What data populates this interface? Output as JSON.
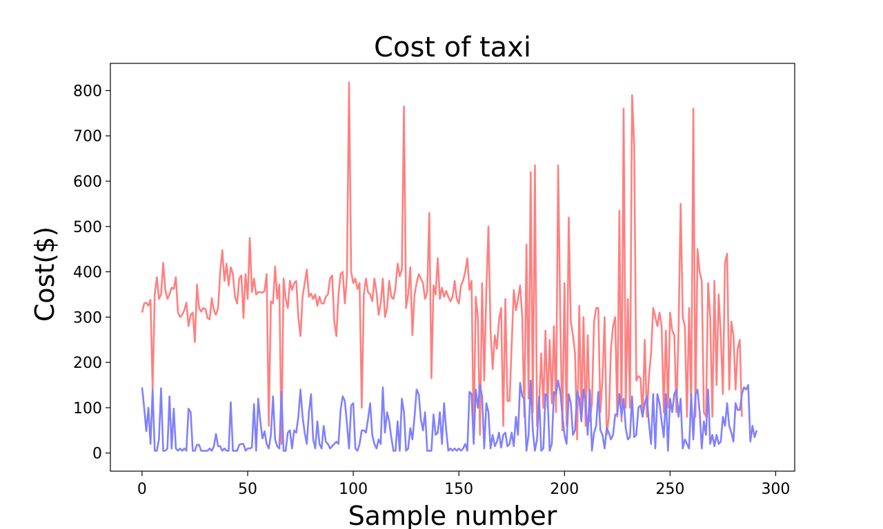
{
  "chart_data": {
    "type": "line",
    "title": "Cost of taxi",
    "xlabel": "Sample number",
    "ylabel": "Cost($)",
    "xlim": [
      -15,
      309
    ],
    "ylim": [
      -40,
      860
    ],
    "xticks": [
      0,
      50,
      100,
      150,
      200,
      250,
      300
    ],
    "yticks": [
      0,
      100,
      200,
      300,
      400,
      500,
      600,
      700,
      800
    ],
    "grid": false,
    "legend": "none",
    "series": [
      {
        "color": "#ff8080",
        "x_start": 0,
        "values": [
          310,
          330,
          332,
          325,
          338,
          140,
          350,
          388,
          340,
          350,
          420,
          360,
          340,
          350,
          365,
          362,
          388,
          310,
          300,
          305,
          315,
          332,
          280,
          305,
          310,
          245,
          372,
          320,
          312,
          320,
          318,
          298,
          295,
          342,
          315,
          305,
          320,
          400,
          448,
          380,
          418,
          370,
          410,
          395,
          345,
          330,
          385,
          392,
          298,
          395,
          340,
          475,
          355,
          385,
          350,
          355,
          355,
          354,
          358,
          395,
          60,
          335,
          330,
          412,
          340,
          372,
          20,
          385,
          340,
          320,
          380,
          360,
          375,
          380,
          300,
          258,
          345,
          375,
          405,
          345,
          352,
          340,
          350,
          325,
          345,
          330,
          330,
          345,
          350,
          385,
          392,
          290,
          258,
          350,
          395,
          400,
          330,
          390,
          818,
          400,
          375,
          385,
          362,
          375,
          100,
          350,
          385,
          355,
          350,
          335,
          385,
          355,
          305,
          330,
          385,
          300,
          320,
          380,
          345,
          340,
          365,
          418,
          390,
          405,
          765,
          320,
          350,
          410,
          260,
          350,
          375,
          395,
          385,
          375,
          340,
          355,
          530,
          165,
          370,
          350,
          430,
          340,
          365,
          345,
          358,
          345,
          335,
          345,
          380,
          340,
          330,
          370,
          380,
          400,
          430,
          360,
          380,
          40,
          345,
          300,
          40,
          375,
          160,
          360,
          500,
          270,
          185,
          260,
          230,
          295,
          320,
          60,
          340,
          115,
          115,
          240,
          360,
          315,
          340,
          370,
          300,
          80,
          460,
          120,
          620,
          90,
          635,
          60,
          105,
          220,
          100,
          270,
          100,
          250,
          110,
          280,
          90,
          635,
          300,
          50,
          375,
          60,
          520,
          290,
          260,
          220,
          30,
          325,
          80,
          300,
          60,
          260,
          70,
          110,
          290,
          320,
          320,
          90,
          165,
          300,
          40,
          80,
          230,
          280,
          300,
          80,
          535,
          70,
          760,
          100,
          340,
          100,
          790,
          680,
          160,
          170,
          165,
          80,
          250,
          80,
          170,
          220,
          320,
          300,
          280,
          310,
          280,
          90,
          270,
          100,
          310,
          270,
          260,
          90,
          270,
          550,
          300,
          280,
          80,
          320,
          100,
          760,
          80,
          450,
          400,
          380,
          90,
          80,
          375,
          300,
          80,
          380,
          150,
          350,
          260,
          130,
          420,
          440,
          140,
          290,
          260,
          140,
          230,
          250,
          80
        ]
      },
      {
        "color": "#8080ff",
        "x_start": 0,
        "values": [
          145,
          100,
          48,
          100,
          20,
          140,
          5,
          5,
          30,
          143,
          5,
          5,
          10,
          125,
          10,
          98,
          10,
          5,
          10,
          5,
          10,
          5,
          98,
          90,
          5,
          5,
          18,
          18,
          5,
          5,
          5,
          5,
          10,
          5,
          15,
          42,
          15,
          15,
          5,
          10,
          5,
          5,
          112,
          5,
          5,
          5,
          18,
          20,
          20,
          5,
          10,
          10,
          12,
          108,
          5,
          120,
          70,
          32,
          48,
          20,
          10,
          40,
          125,
          30,
          15,
          10,
          135,
          5,
          5,
          45,
          50,
          10,
          50,
          45,
          80,
          140,
          80,
          45,
          20,
          90,
          130,
          30,
          10,
          70,
          20,
          10,
          60,
          25,
          20,
          10,
          15,
          20,
          25,
          20,
          95,
          125,
          115,
          65,
          10,
          105,
          110,
          10,
          5,
          20,
          50,
          50,
          45,
          75,
          110,
          40,
          20,
          10,
          30,
          20,
          145,
          45,
          90,
          70,
          35,
          5,
          5,
          70,
          5,
          120,
          90,
          5,
          10,
          55,
          30,
          80,
          140,
          130,
          75,
          50,
          90,
          5,
          5,
          5,
          85,
          40,
          45,
          90,
          20,
          110,
          50,
          5,
          10,
          5,
          10,
          5,
          10,
          5,
          10,
          20,
          5,
          135,
          130,
          20,
          140,
          100,
          150,
          125,
          10,
          110,
          90,
          10,
          40,
          15,
          25,
          45,
          12,
          40,
          45,
          15,
          20,
          45,
          15,
          80,
          40,
          155,
          125,
          120,
          5,
          40,
          160,
          50,
          5,
          30,
          125,
          5,
          10,
          130,
          125,
          5,
          20,
          135,
          130,
          160,
          135,
          85,
          40,
          20,
          130,
          110,
          40,
          50,
          135,
          120,
          70,
          140,
          110,
          40,
          140,
          5,
          45,
          60,
          135,
          50,
          40,
          10,
          55,
          45,
          30,
          40,
          85,
          85,
          130,
          80,
          120,
          55,
          30,
          35,
          125,
          35,
          40,
          100,
          105,
          80,
          110,
          125,
          65,
          20,
          130,
          10,
          130,
          110,
          70,
          35,
          130,
          5,
          120,
          90,
          130,
          140,
          80,
          120,
          10,
          30,
          20,
          10,
          130,
          30,
          130,
          140,
          90,
          10,
          70,
          40,
          140,
          20,
          40,
          15,
          40,
          20,
          25,
          80,
          60,
          110,
          60,
          45,
          25,
          110,
          95,
          95,
          130,
          145,
          140,
          150,
          25,
          60,
          35,
          50
        ]
      }
    ]
  }
}
